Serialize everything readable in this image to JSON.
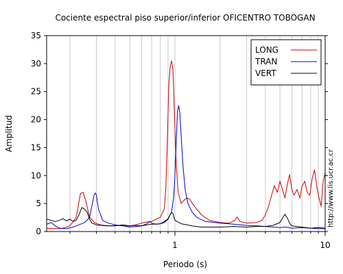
{
  "chart_data": {
    "type": "line",
    "title": "Cociente espectral piso superior/inferior OFICENTRO TOBOGAN",
    "xlabel": "Periodo (s)",
    "ylabel": "Amplitud",
    "x_scale": "log",
    "xlim": [
      0.14,
      10
    ],
    "ylim": [
      0,
      35
    ],
    "x_ticks": [
      1,
      10
    ],
    "y_ticks": [
      0,
      5,
      10,
      15,
      20,
      25,
      30,
      35
    ],
    "grid": "vertical-log",
    "legend_position": "top-right",
    "annotation": "http://www.lis.ucr.ac.cr",
    "series": [
      {
        "name": "LONG",
        "color": "#cc0000",
        "points": [
          [
            0.14,
            0.6
          ],
          [
            0.16,
            0.5
          ],
          [
            0.18,
            0.6
          ],
          [
            0.2,
            1.0
          ],
          [
            0.22,
            2.5
          ],
          [
            0.235,
            6.8
          ],
          [
            0.245,
            7.0
          ],
          [
            0.255,
            5.5
          ],
          [
            0.27,
            2.6
          ],
          [
            0.29,
            1.6
          ],
          [
            0.32,
            1.2
          ],
          [
            0.36,
            1.0
          ],
          [
            0.4,
            1.1
          ],
          [
            0.45,
            1.0
          ],
          [
            0.5,
            1.0
          ],
          [
            0.55,
            1.2
          ],
          [
            0.6,
            1.5
          ],
          [
            0.65,
            1.7
          ],
          [
            0.7,
            1.8
          ],
          [
            0.75,
            2.2
          ],
          [
            0.8,
            2.6
          ],
          [
            0.85,
            4.0
          ],
          [
            0.87,
            8.0
          ],
          [
            0.89,
            16.0
          ],
          [
            0.91,
            26.0
          ],
          [
            0.93,
            29.5
          ],
          [
            0.95,
            30.5
          ],
          [
            0.97,
            29.0
          ],
          [
            0.99,
            22.0
          ],
          [
            1.02,
            12.0
          ],
          [
            1.05,
            7.0
          ],
          [
            1.1,
            5.0
          ],
          [
            1.15,
            5.6
          ],
          [
            1.2,
            6.0
          ],
          [
            1.25,
            5.8
          ],
          [
            1.35,
            4.5
          ],
          [
            1.5,
            3.0
          ],
          [
            1.7,
            2.0
          ],
          [
            2.0,
            1.6
          ],
          [
            2.3,
            1.5
          ],
          [
            2.5,
            2.0
          ],
          [
            2.6,
            2.6
          ],
          [
            2.7,
            1.8
          ],
          [
            3.0,
            1.5
          ],
          [
            3.5,
            1.6
          ],
          [
            3.8,
            2.0
          ],
          [
            4.0,
            3.0
          ],
          [
            4.2,
            4.5
          ],
          [
            4.4,
            6.5
          ],
          [
            4.6,
            8.2
          ],
          [
            4.8,
            7.0
          ],
          [
            5.0,
            9.0
          ],
          [
            5.2,
            7.5
          ],
          [
            5.4,
            6.0
          ],
          [
            5.6,
            8.5
          ],
          [
            5.8,
            10.2
          ],
          [
            6.0,
            7.5
          ],
          [
            6.2,
            6.5
          ],
          [
            6.5,
            7.5
          ],
          [
            6.8,
            6.0
          ],
          [
            7.0,
            8.0
          ],
          [
            7.3,
            9.0
          ],
          [
            7.6,
            7.0
          ],
          [
            7.9,
            6.5
          ],
          [
            8.2,
            9.5
          ],
          [
            8.5,
            11.0
          ],
          [
            8.8,
            8.0
          ],
          [
            9.1,
            6.0
          ],
          [
            9.4,
            4.5
          ],
          [
            9.7,
            9.0
          ],
          [
            10.0,
            10.5
          ]
        ]
      },
      {
        "name": "TRAN",
        "color": "#0000cc",
        "points": [
          [
            0.14,
            1.3
          ],
          [
            0.15,
            1.6
          ],
          [
            0.16,
            1.0
          ],
          [
            0.17,
            0.6
          ],
          [
            0.19,
            0.5
          ],
          [
            0.21,
            0.8
          ],
          [
            0.23,
            1.2
          ],
          [
            0.25,
            1.6
          ],
          [
            0.27,
            2.5
          ],
          [
            0.28,
            4.5
          ],
          [
            0.29,
            6.6
          ],
          [
            0.295,
            6.9
          ],
          [
            0.3,
            6.5
          ],
          [
            0.31,
            4.0
          ],
          [
            0.33,
            2.0
          ],
          [
            0.36,
            1.5
          ],
          [
            0.4,
            1.2
          ],
          [
            0.45,
            1.0
          ],
          [
            0.5,
            0.8
          ],
          [
            0.55,
            0.9
          ],
          [
            0.6,
            1.0
          ],
          [
            0.65,
            1.4
          ],
          [
            0.68,
            1.8
          ],
          [
            0.7,
            1.5
          ],
          [
            0.75,
            1.3
          ],
          [
            0.8,
            1.4
          ],
          [
            0.85,
            1.8
          ],
          [
            0.9,
            2.3
          ],
          [
            0.95,
            3.5
          ],
          [
            0.98,
            6.0
          ],
          [
            1.0,
            10.0
          ],
          [
            1.02,
            16.0
          ],
          [
            1.04,
            21.5
          ],
          [
            1.06,
            22.5
          ],
          [
            1.08,
            21.0
          ],
          [
            1.1,
            17.0
          ],
          [
            1.13,
            12.0
          ],
          [
            1.17,
            7.5
          ],
          [
            1.22,
            5.0
          ],
          [
            1.3,
            3.5
          ],
          [
            1.4,
            2.5
          ],
          [
            1.6,
            1.8
          ],
          [
            2.0,
            1.5
          ],
          [
            2.5,
            1.3
          ],
          [
            3.0,
            1.1
          ],
          [
            3.5,
            1.0
          ],
          [
            4.0,
            0.9
          ],
          [
            4.5,
            0.8
          ],
          [
            5.0,
            0.7
          ],
          [
            5.5,
            0.8
          ],
          [
            6.0,
            0.6
          ],
          [
            7.0,
            0.7
          ],
          [
            8.0,
            0.6
          ],
          [
            9.0,
            0.5
          ],
          [
            10.0,
            0.5
          ]
        ]
      },
      {
        "name": "VERT",
        "color": "#000000",
        "points": [
          [
            0.14,
            2.2
          ],
          [
            0.15,
            2.0
          ],
          [
            0.16,
            1.8
          ],
          [
            0.17,
            2.0
          ],
          [
            0.18,
            2.3
          ],
          [
            0.19,
            1.9
          ],
          [
            0.2,
            2.2
          ],
          [
            0.21,
            1.8
          ],
          [
            0.22,
            2.0
          ],
          [
            0.23,
            3.0
          ],
          [
            0.24,
            4.3
          ],
          [
            0.25,
            4.0
          ],
          [
            0.26,
            3.5
          ],
          [
            0.27,
            2.2
          ],
          [
            0.28,
            1.5
          ],
          [
            0.3,
            1.2
          ],
          [
            0.35,
            1.0
          ],
          [
            0.4,
            1.0
          ],
          [
            0.45,
            1.2
          ],
          [
            0.5,
            1.0
          ],
          [
            0.55,
            1.1
          ],
          [
            0.6,
            1.0
          ],
          [
            0.65,
            1.2
          ],
          [
            0.7,
            1.3
          ],
          [
            0.8,
            1.4
          ],
          [
            0.85,
            1.6
          ],
          [
            0.9,
            2.2
          ],
          [
            0.93,
            3.0
          ],
          [
            0.95,
            3.4
          ],
          [
            0.97,
            3.2
          ],
          [
            1.0,
            2.0
          ],
          [
            1.1,
            1.4
          ],
          [
            1.3,
            1.0
          ],
          [
            1.5,
            0.8
          ],
          [
            2.0,
            0.8
          ],
          [
            2.5,
            0.9
          ],
          [
            3.0,
            0.8
          ],
          [
            3.5,
            0.9
          ],
          [
            4.0,
            0.9
          ],
          [
            4.5,
            1.1
          ],
          [
            5.0,
            1.6
          ],
          [
            5.2,
            2.4
          ],
          [
            5.4,
            3.1
          ],
          [
            5.6,
            2.4
          ],
          [
            5.8,
            1.5
          ],
          [
            6.0,
            1.0
          ],
          [
            7.0,
            0.8
          ],
          [
            8.0,
            0.6
          ],
          [
            9.0,
            0.7
          ],
          [
            10.0,
            0.6
          ]
        ]
      }
    ]
  }
}
